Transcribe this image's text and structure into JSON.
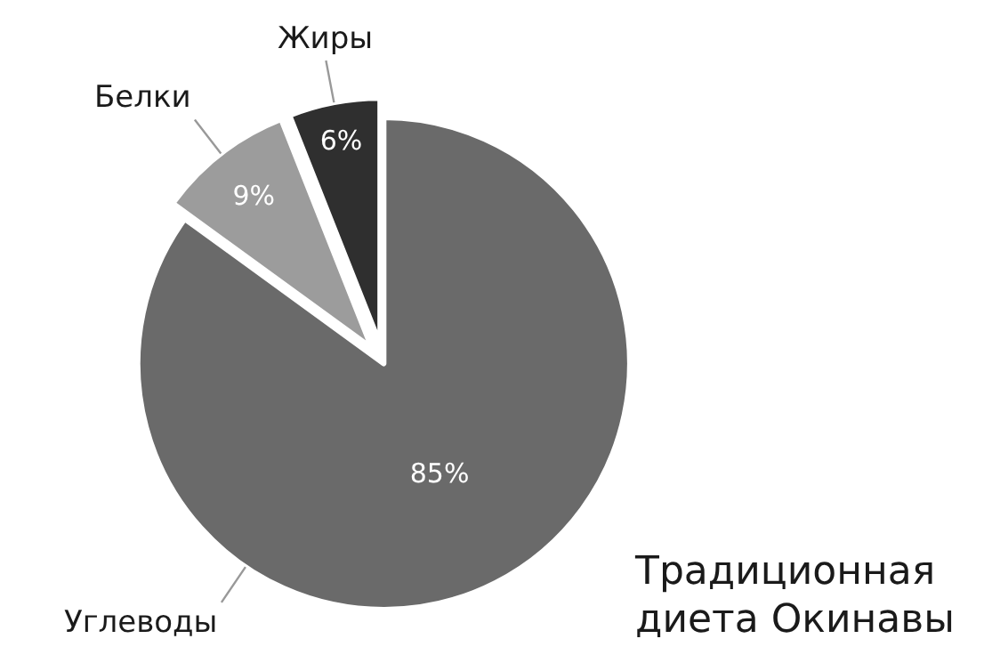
{
  "chart_data": {
    "type": "pie",
    "title": "Традиционная диета Окинавы",
    "categories": [
      "Углеводы",
      "Белки",
      "Жиры"
    ],
    "values": [
      85,
      9,
      6
    ],
    "colors": [
      "#6a6a6a",
      "#9c9c9c",
      "#2f2f2f"
    ],
    "value_labels": [
      "85%",
      "9%",
      "6%"
    ],
    "legend": false
  }
}
